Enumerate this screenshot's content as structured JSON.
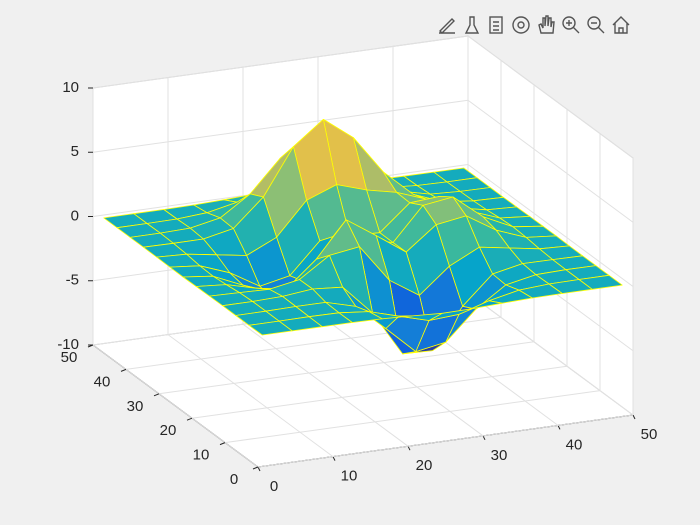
{
  "chart_data": {
    "type": "surface",
    "x": [
      1,
      5,
      9,
      13,
      17,
      21,
      25,
      29,
      33,
      37,
      41,
      45,
      49
    ],
    "y": [
      1,
      5,
      9,
      13,
      17,
      21,
      25,
      29,
      33,
      37,
      41,
      45,
      49
    ],
    "z": [
      [
        0,
        0,
        0,
        0,
        -0.03,
        -0.13,
        -0.25,
        -0.22,
        -0.11,
        -0.03,
        -0.01,
        0,
        0
      ],
      [
        0,
        0,
        0.02,
        0,
        -0.23,
        -0.91,
        -1.57,
        -1.41,
        -0.69,
        -0.18,
        -0.03,
        0,
        0
      ],
      [
        0,
        0.01,
        0.05,
        0.05,
        -0.59,
        -2.63,
        -4.75,
        -4.34,
        -2.1,
        -0.53,
        -0.06,
        0,
        0
      ],
      [
        0,
        0.01,
        0.08,
        0.33,
        0.15,
        -2.19,
        -5.68,
        -5.76,
        -2.63,
        -0.44,
        0.04,
        0.03,
        0
      ],
      [
        -0.01,
        -0.06,
        -0.13,
        0.3,
        1.86,
        2.22,
        -0.72,
        -2.22,
        -0.27,
        0.88,
        0.5,
        0.11,
        0.01
      ],
      [
        -0.02,
        -0.2,
        -0.8,
        -1.21,
        0.8,
        3.55,
        2,
        0.39,
        2.2,
        2.56,
        1.12,
        0.24,
        0.03
      ],
      [
        -0.04,
        -0.3,
        -1.33,
        -2.77,
        -1.65,
        1.48,
        0.98,
        0.37,
        2.94,
        3.27,
        1.41,
        0.3,
        0.03
      ],
      [
        -0.03,
        -0.25,
        -1.12,
        -2.49,
        -2,
        0.39,
        0.46,
        0.38,
        2.38,
        2.56,
        1.09,
        0.23,
        0.03
      ],
      [
        -0.01,
        -0.11,
        -0.48,
        -0.86,
        0.23,
        2.79,
        3.69,
        2.94,
        2.43,
        1.58,
        0.58,
        0.11,
        0.01
      ],
      [
        0,
        -0.02,
        -0.01,
        0.48,
        2.61,
        6.2,
        8,
        6.25,
        3.25,
        1.19,
        0.29,
        0.05,
        0
      ],
      [
        0,
        0.01,
        0.08,
        0.55,
        2.09,
        4.55,
        5.85,
        4.56,
        2.21,
        0.68,
        0.13,
        0.02,
        0
      ],
      [
        0,
        0,
        0.03,
        0.19,
        0.69,
        1.47,
        1.88,
        1.47,
        0.7,
        0.21,
        0.04,
        0,
        0
      ],
      [
        0,
        0,
        0.01,
        0.03,
        0.11,
        0.23,
        0.3,
        0.23,
        0.11,
        0.03,
        0.01,
        0,
        0
      ]
    ],
    "xlim": [
      0,
      50
    ],
    "ylim": [
      0,
      50
    ],
    "zlim": [
      -10,
      10
    ],
    "xticks": [
      0,
      10,
      20,
      30,
      40,
      50
    ],
    "yticks": [
      0,
      10,
      20,
      30,
      40,
      50
    ],
    "zticks": [
      -10,
      -5,
      0,
      5,
      10
    ],
    "grid": true,
    "edge_color": "#ffff00",
    "colormap": [
      "#352a87",
      "#0f5cdd",
      "#1481d6",
      "#06a4ca",
      "#2eb7a4",
      "#87bf77",
      "#d1bb59",
      "#fec832",
      "#f9fb0e"
    ]
  }
}
